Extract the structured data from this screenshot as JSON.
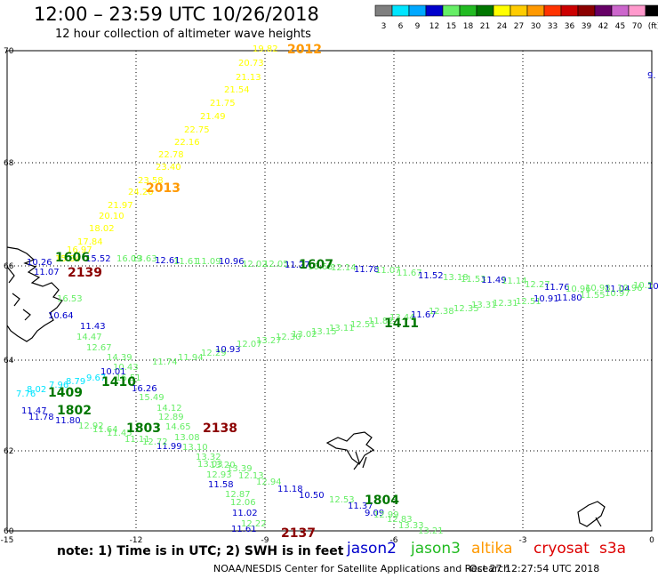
{
  "header": {
    "title": "12:00 – 23:59 UTC 10/26/2018",
    "subtitle": "12 hour collection of altimeter wave heights"
  },
  "colorbar": {
    "labels": [
      "3",
      "6",
      "9",
      "12",
      "15",
      "18",
      "21",
      "24",
      "27",
      "30",
      "33",
      "36",
      "39",
      "42",
      "45",
      "70",
      "(ft)"
    ],
    "colors": [
      "#7f7f7f",
      "#00e5ff",
      "#00a8ff",
      "#0000cc",
      "#66ee66",
      "#22bb22",
      "#007700",
      "#ffff00",
      "#ffcc00",
      "#ff9900",
      "#ff3300",
      "#cc0000",
      "#8b0000",
      "#660066",
      "#cc66cc",
      "#ff99cc",
      "#000000"
    ]
  },
  "axes": {
    "lat_ticks": [
      "70",
      "68",
      "66",
      "64",
      "62",
      "60"
    ],
    "lon_ticks": [
      "-15",
      "-12",
      "-9",
      "-6",
      "-3",
      "0"
    ]
  },
  "times": [
    {
      "text": "2012",
      "color": "#ff9900"
    },
    {
      "text": "2013",
      "color": "#ff9900"
    },
    {
      "text": "1606",
      "color": "#007700"
    },
    {
      "text": "2139",
      "color": "#8b0000"
    },
    {
      "text": "1607",
      "color": "#007700"
    },
    {
      "text": "1411",
      "color": "#007700"
    },
    {
      "text": "1410",
      "color": "#007700"
    },
    {
      "text": "1409",
      "color": "#007700"
    },
    {
      "text": "1802",
      "color": "#007700"
    },
    {
      "text": "1803",
      "color": "#007700"
    },
    {
      "text": "2138",
      "color": "#8b0000"
    },
    {
      "text": "1804",
      "color": "#007700"
    },
    {
      "text": "2137",
      "color": "#8b0000"
    }
  ],
  "altika_track": [
    "19.82",
    "20.73",
    "21.13",
    "21.54",
    "21.75",
    "21.49",
    "22.75",
    "22.16",
    "22.78",
    "23.40",
    "23.58",
    "24.20",
    "21.97",
    "20.10",
    "18.02",
    "17.84",
    "16.97",
    "15.84"
  ],
  "jason3_north": [
    "15.52",
    "16.09",
    "13.63",
    "12.61",
    "11.61",
    "11.09",
    "10.96",
    "12.02",
    "12.05",
    "11.27",
    "10.63",
    "12.14",
    "11.78",
    "11.07",
    "11.67",
    "11.52",
    "13.18",
    "11.53",
    "11.49",
    "11.14",
    "12.27",
    "11.76",
    "10.96",
    "10.98",
    "11.04",
    "10.96",
    "10.5",
    "10.91"
  ],
  "jason3_south": [
    "14.39",
    "11.74",
    "11.94",
    "12.29",
    "10.93",
    "12.07",
    "13.27",
    "12.30",
    "13.02",
    "13.15",
    "13.11",
    "12.51",
    "11.82",
    "13.44",
    "11.67",
    "12.38",
    "12.35",
    "13.31",
    "12.31",
    "12.51",
    "10.91",
    "11.80",
    "11.55",
    "10.97"
  ],
  "cryosat_track": [
    "10.26",
    "11.07",
    "16.53",
    "10.64",
    "11.43",
    "14.47",
    "12.67",
    "10.43",
    "10.01",
    "16.51",
    "16.26",
    "15.49",
    "14.12",
    "12.89",
    "14.65",
    "13.08",
    "11.99",
    "13.10",
    "13.32",
    "13.03",
    "13.20",
    "12.93",
    "13.39",
    "11.58",
    "12.13",
    "12.94",
    "12.87",
    "11.18",
    "12.06",
    "10.50",
    "11.02",
    "12.53",
    "11.37",
    "11.61",
    "12.22",
    "9.09",
    "12.99",
    "12.83",
    "13.33",
    "13.21"
  ],
  "jason2_track": [
    "7.76",
    "8.02",
    "7.96",
    "8.79",
    "9.67",
    "11.47",
    "11.78",
    "11.80",
    "12.92",
    "11.64",
    "11.11",
    "11.45",
    "12.72"
  ],
  "edge_value": "9.",
  "footer": {
    "note": "note:  1) Time is in UTC;  2) SWH is in feet",
    "jason2": "jason2",
    "jason3": "jason3",
    "altika": "altika",
    "cryosat": "cryosat",
    "s3a": "s3a",
    "credit": "NOAA/NESDIS Center for Satellite Applications and Research",
    "timestamp": "Oct 27 12:27:54 UTC 2018"
  }
}
